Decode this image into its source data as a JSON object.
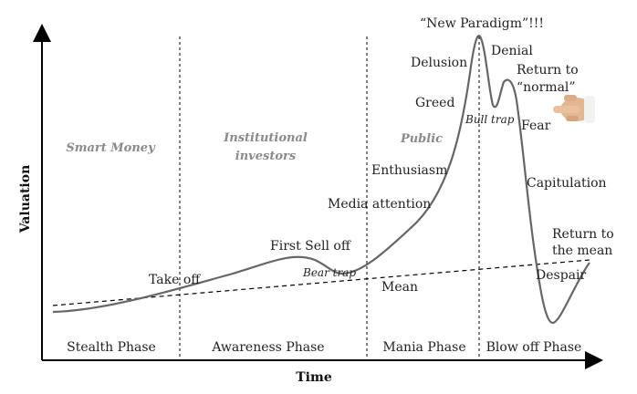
{
  "axes": {
    "x_title": "Time",
    "y_title": "Valuation"
  },
  "groups": {
    "smart_money": "Smart Money",
    "institutional_line1": "Institutional",
    "institutional_line2": "investors",
    "public": "Public"
  },
  "phases": {
    "stealth": "Stealth Phase",
    "awareness": "Awareness Phase",
    "mania": "Mania Phase",
    "blowoff": "Blow off Phase"
  },
  "labels": {
    "take_off": "Take off",
    "first_sell_off": "First Sell off",
    "bear_trap": "Bear trap",
    "media_attention": "Media attention",
    "enthusiasm": "Enthusiasm",
    "greed": "Greed",
    "delusion": "Delusion",
    "new_paradigm": "“New Paradigm”!!!",
    "denial": "Denial",
    "bull_trap": "Bull trap",
    "return_normal_line1": "Return to",
    "return_normal_line2": "“normal”",
    "fear": "Fear",
    "capitulation": "Capitulation",
    "despair": "Despair",
    "return_mean_line1": "Return to",
    "return_mean_line2": "the mean",
    "mean": "Mean"
  },
  "icons": {
    "pointer": "pointing-hand-icon"
  },
  "colors": {
    "curve": "#666666",
    "axis": "#000000",
    "group_text": "#8a8a8a"
  }
}
